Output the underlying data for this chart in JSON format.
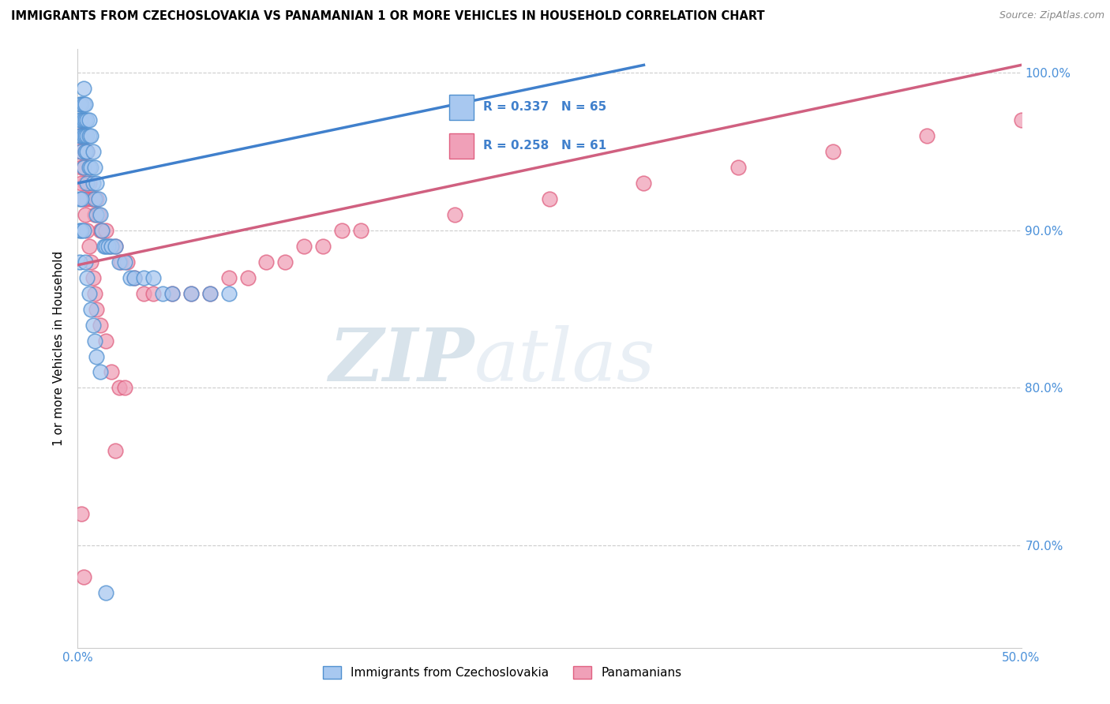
{
  "title": "IMMIGRANTS FROM CZECHOSLOVAKIA VS PANAMANIAN 1 OR MORE VEHICLES IN HOUSEHOLD CORRELATION CHART",
  "source": "Source: ZipAtlas.com",
  "ylabel": "1 or more Vehicles in Household",
  "legend_label1": "Immigrants from Czechoslovakia",
  "legend_label2": "Panamanians",
  "R1": 0.337,
  "N1": 65,
  "R2": 0.258,
  "N2": 61,
  "xlim": [
    0.0,
    0.5
  ],
  "ylim": [
    0.635,
    1.015
  ],
  "xticks": [
    0.0,
    0.1,
    0.2,
    0.3,
    0.4,
    0.5
  ],
  "xtick_labels": [
    "0.0%",
    "",
    "",
    "",
    "",
    "50.0%"
  ],
  "ytick_positions": [
    0.7,
    0.8,
    0.9,
    1.0
  ],
  "ytick_labels": [
    "70.0%",
    "80.0%",
    "90.0%",
    "100.0%"
  ],
  "color1": "#A8C8F0",
  "color2": "#F0A0B8",
  "edge_color1": "#5090D0",
  "edge_color2": "#E06080",
  "line_color1": "#4080CC",
  "line_color2": "#D06080",
  "background_color": "#FFFFFF",
  "watermark_color": "#C8DCF0",
  "blue_scatter_x": [
    0.001,
    0.001,
    0.001,
    0.002,
    0.002,
    0.002,
    0.002,
    0.003,
    0.003,
    0.003,
    0.003,
    0.003,
    0.004,
    0.004,
    0.004,
    0.004,
    0.005,
    0.005,
    0.005,
    0.005,
    0.006,
    0.006,
    0.006,
    0.007,
    0.007,
    0.008,
    0.008,
    0.009,
    0.009,
    0.01,
    0.01,
    0.011,
    0.012,
    0.013,
    0.014,
    0.015,
    0.016,
    0.018,
    0.02,
    0.022,
    0.025,
    0.028,
    0.03,
    0.035,
    0.04,
    0.045,
    0.05,
    0.06,
    0.07,
    0.08,
    0.001,
    0.001,
    0.001,
    0.002,
    0.002,
    0.003,
    0.004,
    0.005,
    0.006,
    0.007,
    0.008,
    0.009,
    0.01,
    0.012,
    0.015
  ],
  "blue_scatter_y": [
    0.96,
    0.97,
    0.98,
    0.95,
    0.96,
    0.97,
    0.98,
    0.94,
    0.96,
    0.97,
    0.98,
    0.99,
    0.95,
    0.96,
    0.97,
    0.98,
    0.93,
    0.95,
    0.96,
    0.97,
    0.94,
    0.96,
    0.97,
    0.94,
    0.96,
    0.93,
    0.95,
    0.92,
    0.94,
    0.91,
    0.93,
    0.92,
    0.91,
    0.9,
    0.89,
    0.89,
    0.89,
    0.89,
    0.89,
    0.88,
    0.88,
    0.87,
    0.87,
    0.87,
    0.87,
    0.86,
    0.86,
    0.86,
    0.86,
    0.86,
    0.88,
    0.9,
    0.92,
    0.9,
    0.92,
    0.9,
    0.88,
    0.87,
    0.86,
    0.85,
    0.84,
    0.83,
    0.82,
    0.81,
    0.67
  ],
  "pink_scatter_x": [
    0.001,
    0.001,
    0.002,
    0.002,
    0.003,
    0.003,
    0.004,
    0.004,
    0.005,
    0.005,
    0.006,
    0.007,
    0.008,
    0.009,
    0.01,
    0.011,
    0.012,
    0.013,
    0.015,
    0.017,
    0.02,
    0.023,
    0.026,
    0.03,
    0.035,
    0.04,
    0.05,
    0.06,
    0.07,
    0.08,
    0.09,
    0.1,
    0.11,
    0.12,
    0.13,
    0.14,
    0.15,
    0.2,
    0.25,
    0.3,
    0.35,
    0.4,
    0.45,
    0.5,
    0.002,
    0.003,
    0.004,
    0.005,
    0.006,
    0.007,
    0.008,
    0.009,
    0.01,
    0.012,
    0.015,
    0.018,
    0.022,
    0.025,
    0.002,
    0.003,
    0.02
  ],
  "pink_scatter_y": [
    0.95,
    0.96,
    0.94,
    0.96,
    0.94,
    0.96,
    0.93,
    0.95,
    0.92,
    0.95,
    0.93,
    0.92,
    0.92,
    0.91,
    0.92,
    0.91,
    0.9,
    0.9,
    0.9,
    0.89,
    0.89,
    0.88,
    0.88,
    0.87,
    0.86,
    0.86,
    0.86,
    0.86,
    0.86,
    0.87,
    0.87,
    0.88,
    0.88,
    0.89,
    0.89,
    0.9,
    0.9,
    0.91,
    0.92,
    0.93,
    0.94,
    0.95,
    0.96,
    0.97,
    0.93,
    0.92,
    0.91,
    0.9,
    0.89,
    0.88,
    0.87,
    0.86,
    0.85,
    0.84,
    0.83,
    0.81,
    0.8,
    0.8,
    0.72,
    0.68,
    0.76
  ],
  "blue_line_x0": 0.0,
  "blue_line_x1": 0.3,
  "blue_line_y0": 0.93,
  "blue_line_y1": 1.005,
  "pink_line_x0": 0.0,
  "pink_line_x1": 0.5,
  "pink_line_y0": 0.878,
  "pink_line_y1": 1.005
}
